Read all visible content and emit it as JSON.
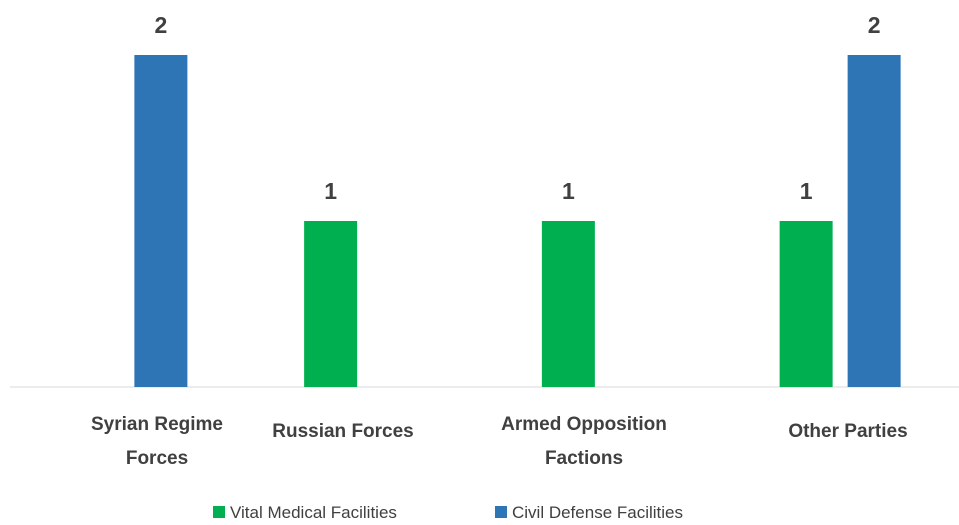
{
  "chart_data": {
    "type": "bar",
    "categories": [
      "Syrian Regime Forces",
      "Russian Forces",
      "Armed Opposition Factions",
      "Other Parties"
    ],
    "series": [
      {
        "name": "Vital Medical Facilities",
        "color": "#00b050",
        "values": [
          null,
          1,
          1,
          1
        ]
      },
      {
        "name": "Civil Defense Facilities",
        "color": "#2e75b6",
        "values": [
          2,
          null,
          null,
          2
        ]
      }
    ],
    "ylim": [
      0,
      2
    ],
    "legend": "bottom"
  }
}
